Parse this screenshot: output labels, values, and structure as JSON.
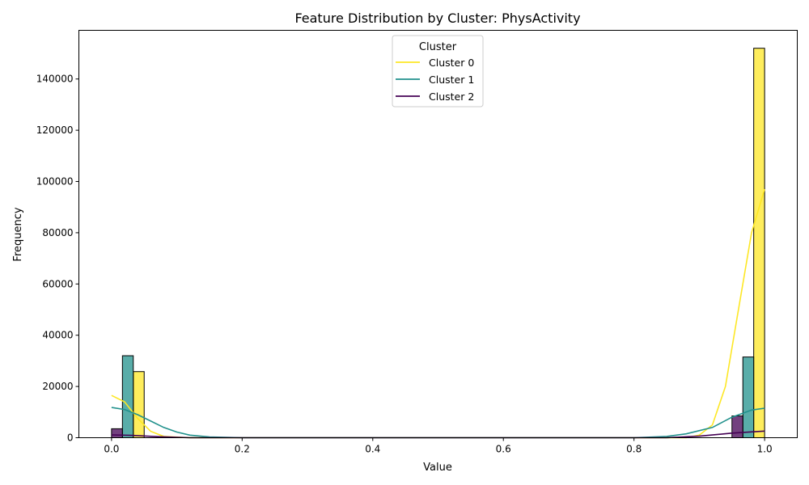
{
  "chart_data": {
    "type": "bar",
    "title": "Feature Distribution by Cluster: PhysActivity",
    "xlabel": "Value",
    "ylabel": "Frequency",
    "xlim": [
      -0.05,
      1.05
    ],
    "ylim": [
      0,
      159000
    ],
    "xticks": [
      "0.0",
      "0.2",
      "0.4",
      "0.6",
      "0.8",
      "1.0"
    ],
    "yticks": [
      "0",
      "20000",
      "40000",
      "60000",
      "80000",
      "100000",
      "120000",
      "140000"
    ],
    "grid": false,
    "legend": {
      "title": "Cluster",
      "placement": "top-center"
    },
    "series": [
      {
        "name": "Cluster 0",
        "color": "#fde725",
        "bars": [
          {
            "x0": 0.0333,
            "x1": 0.05,
            "value": 25800
          },
          {
            "x0": 0.9833,
            "x1": 1.0,
            "value": 152000
          }
        ],
        "kde": [
          [
            0,
            16500
          ],
          [
            0.02,
            14000
          ],
          [
            0.04,
            7500
          ],
          [
            0.06,
            2500
          ],
          [
            0.08,
            500
          ],
          [
            0.12,
            0
          ],
          [
            0.88,
            0
          ],
          [
            0.9,
            1000
          ],
          [
            0.92,
            5000
          ],
          [
            0.94,
            20000
          ],
          [
            0.96,
            50000
          ],
          [
            0.98,
            80000
          ],
          [
            1.0,
            97000
          ]
        ]
      },
      {
        "name": "Cluster 1",
        "color": "#21918c",
        "bars": [
          {
            "x0": 0.0167,
            "x1": 0.0333,
            "value": 32000
          },
          {
            "x0": 0.9667,
            "x1": 0.9833,
            "value": 31500
          }
        ],
        "kde": [
          [
            0,
            11800
          ],
          [
            0.02,
            11000
          ],
          [
            0.04,
            9000
          ],
          [
            0.06,
            6500
          ],
          [
            0.08,
            4000
          ],
          [
            0.1,
            2200
          ],
          [
            0.12,
            1000
          ],
          [
            0.15,
            300
          ],
          [
            0.2,
            0
          ],
          [
            0.8,
            0
          ],
          [
            0.85,
            500
          ],
          [
            0.88,
            1500
          ],
          [
            0.92,
            4000
          ],
          [
            0.95,
            8000
          ],
          [
            0.98,
            10800
          ],
          [
            1.0,
            11500
          ]
        ]
      },
      {
        "name": "Cluster 2",
        "color": "#440154",
        "bars": [
          {
            "x0": 0.0,
            "x1": 0.0167,
            "value": 3500
          },
          {
            "x0": 0.95,
            "x1": 0.9667,
            "value": 8500
          }
        ],
        "kde": [
          [
            0,
            1100
          ],
          [
            0.03,
            900
          ],
          [
            0.07,
            400
          ],
          [
            0.12,
            0
          ],
          [
            0.85,
            0
          ],
          [
            0.9,
            600
          ],
          [
            0.95,
            1800
          ],
          [
            1.0,
            2600
          ]
        ]
      }
    ]
  }
}
